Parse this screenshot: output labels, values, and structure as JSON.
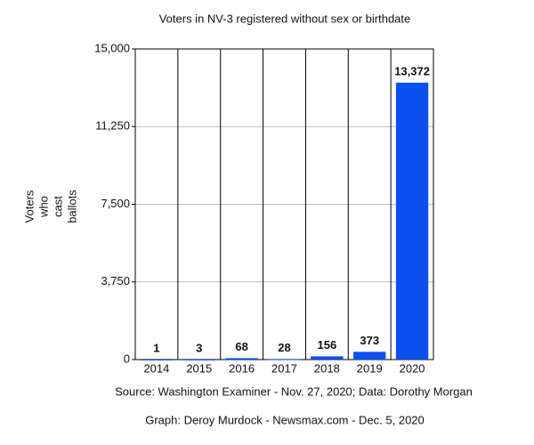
{
  "chart_data": {
    "type": "bar",
    "title": "Voters in NV-3 registered without sex or birthdate",
    "ylabel": [
      "Voters",
      "who",
      "cast",
      "ballots"
    ],
    "categories": [
      "2014",
      "2015",
      "2016",
      "2017",
      "2018",
      "2019",
      "2020"
    ],
    "values": [
      1,
      3,
      68,
      28,
      156,
      373,
      13372
    ],
    "value_labels": [
      "1",
      "3",
      "68",
      "28",
      "156",
      "373",
      "13,372"
    ],
    "color": "#0b4ff0",
    "ylim": [
      0,
      15000
    ],
    "yticks": [
      0,
      {
        "value": 3750,
        "label": "3,750"
      },
      {
        "value": 7500,
        "label": "7,500"
      },
      {
        "value": 11250,
        "label": "11,250"
      },
      {
        "value": 15000,
        "label": "15,000"
      }
    ],
    "grid": true,
    "source": "Source: Washington Examiner - Nov. 27, 2020; Data: Dorothy Morgan",
    "credit": "Graph: Deroy Murdock - Newsmax.com - Dec. 5, 2020"
  }
}
